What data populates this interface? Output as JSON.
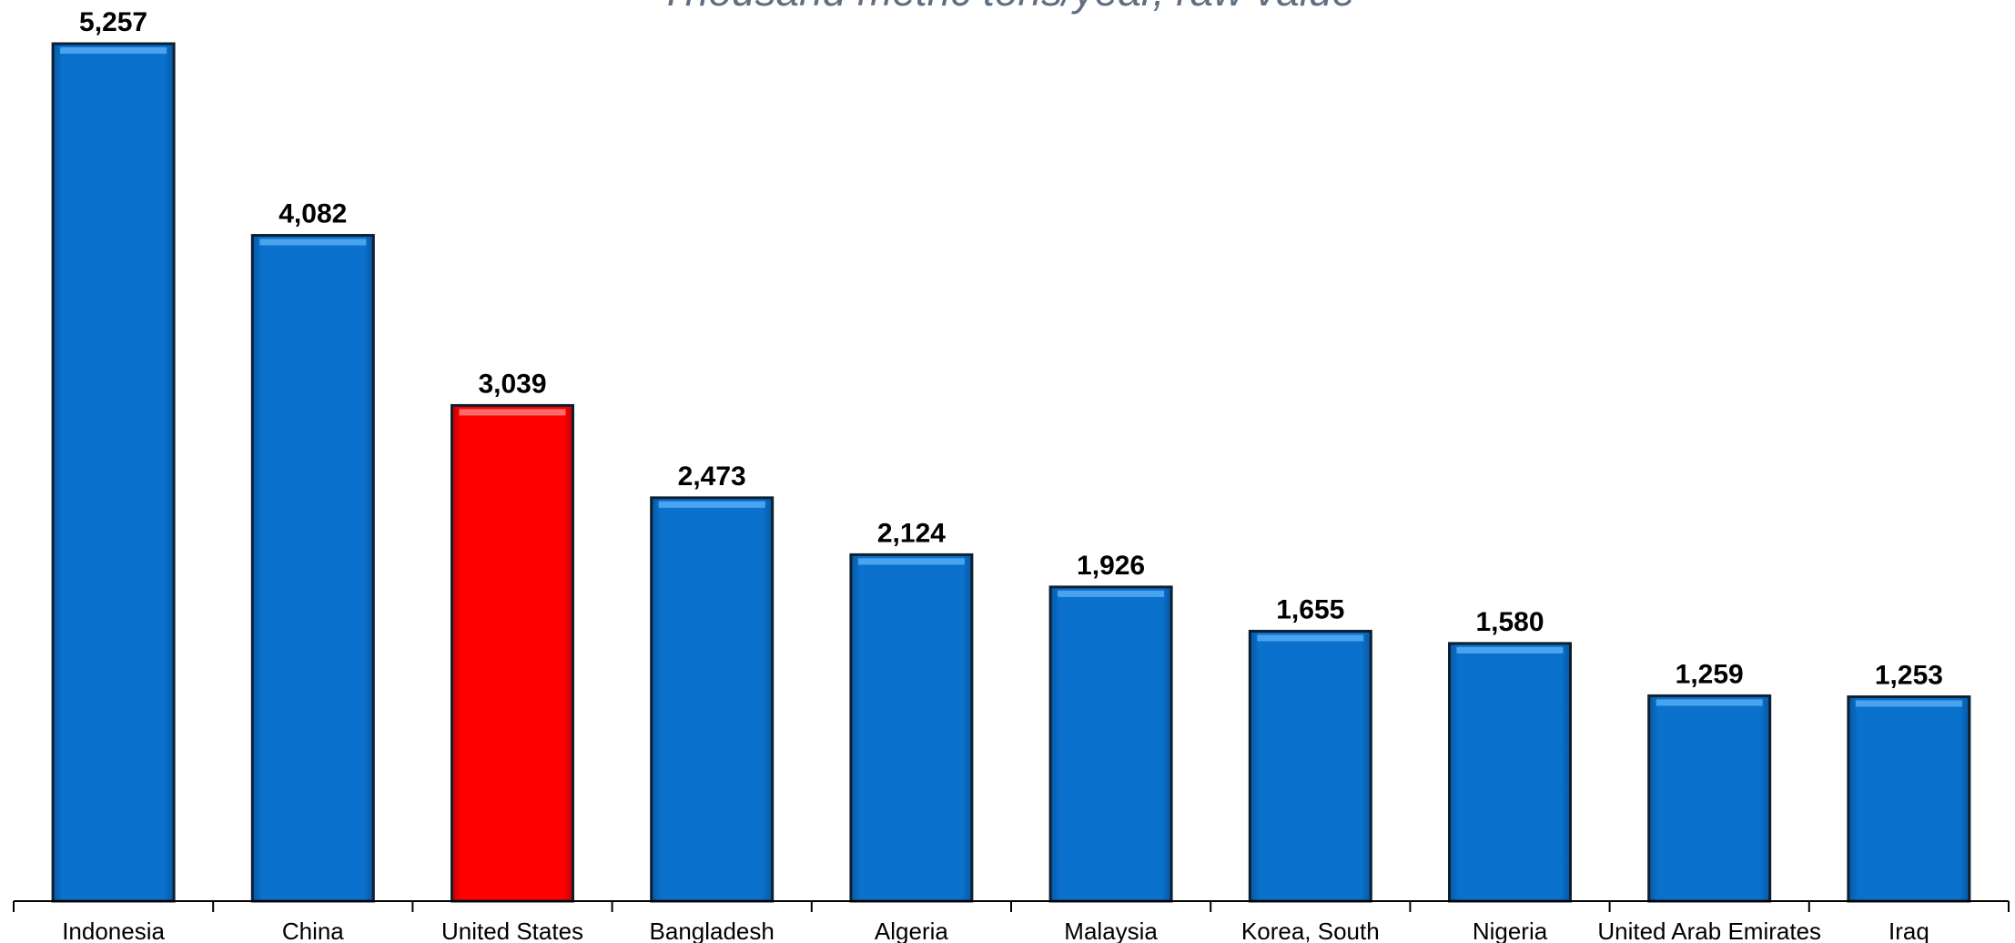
{
  "chart_data": {
    "type": "bar",
    "title": "",
    "subtitle": "Thousand metric tons/year, raw value",
    "xlabel": "",
    "ylabel": "",
    "ylim": [
      0,
      5257
    ],
    "grid": false,
    "legend": "none",
    "categories": [
      "Indonesia",
      "China",
      "United States",
      "Bangladesh",
      "Algeria",
      "Malaysia",
      "Korea, South",
      "Nigeria",
      "United Arab Emirates",
      "Iraq"
    ],
    "values": [
      5257,
      4082,
      3039,
      2473,
      2124,
      1926,
      1655,
      1580,
      1259,
      1253
    ],
    "value_labels": [
      "5,257",
      "4,082",
      "3,039",
      "2,473",
      "2,124",
      "1,926",
      "1,655",
      "1,580",
      "1,259",
      "1,253"
    ],
    "colors": {
      "default_bar": "#0a72cc",
      "highlight_bar": "#ff0000",
      "bar_edge": "#0d1f30",
      "highlight_category": "United States"
    }
  }
}
